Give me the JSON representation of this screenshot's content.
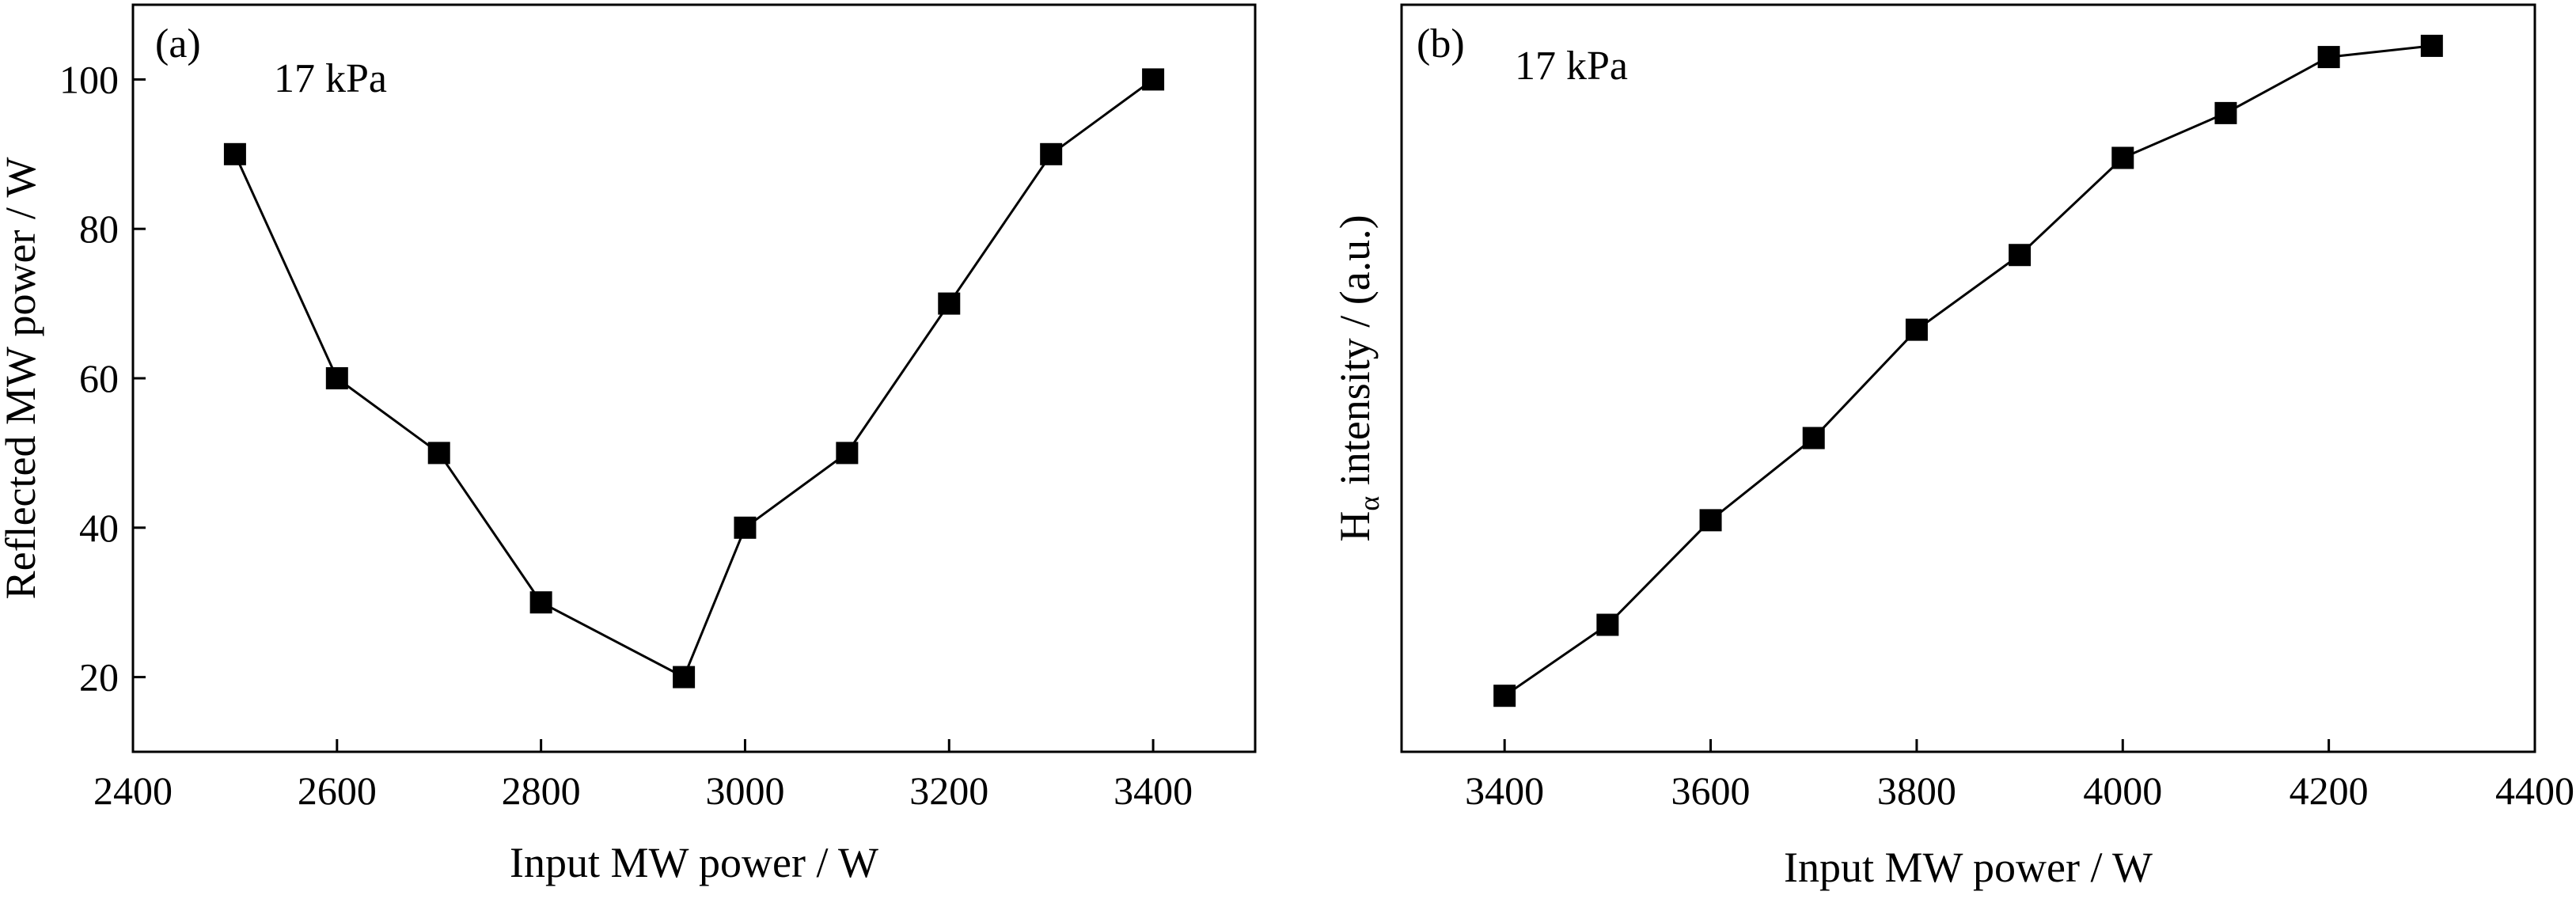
{
  "chart_data": [
    {
      "type": "line",
      "panel_label": "(a)",
      "annotation": "17 kPa",
      "xlabel": "Input MW power / W",
      "ylabel": "Reflected MW power / W",
      "xlim": [
        2400,
        3500
      ],
      "ylim": [
        10,
        110
      ],
      "xticks": [
        2400,
        2600,
        2800,
        3000,
        3200,
        3400
      ],
      "yticks": [
        20,
        40,
        60,
        80,
        100
      ],
      "y_tick_labels_visible": true,
      "grid": false,
      "marker": "square",
      "x": [
        2500,
        2600,
        2700,
        2800,
        2940,
        3000,
        3100,
        3200,
        3300,
        3400
      ],
      "y": [
        90,
        60,
        50,
        30,
        20,
        40,
        50,
        70,
        90,
        100
      ]
    },
    {
      "type": "line",
      "panel_label": "(b)",
      "annotation": "17 kPa",
      "xlabel": "Input MW power / W",
      "ylabel_main": "H",
      "ylabel_subscript": "α",
      "ylabel_rest": " intensity / (a.u.)",
      "xlim": [
        3300,
        4400
      ],
      "ylim": [
        0,
        100
      ],
      "xticks": [
        3400,
        3600,
        3800,
        4000,
        4200,
        4400
      ],
      "yticks": [],
      "y_tick_labels_visible": false,
      "grid": false,
      "marker": "square",
      "x": [
        3400,
        3500,
        3600,
        3700,
        3800,
        3900,
        4000,
        4100,
        4200,
        4300
      ],
      "y": [
        7.5,
        17,
        31,
        42,
        56.5,
        66.5,
        79.5,
        85.5,
        93,
        94.5
      ]
    }
  ]
}
